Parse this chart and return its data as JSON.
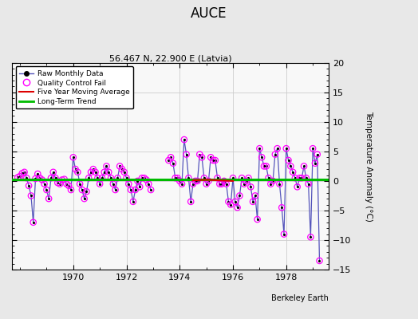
{
  "title": "AUCE",
  "subtitle": "56.467 N, 22.900 E (Latvia)",
  "ylabel": "Temperature Anomaly (°C)",
  "attribution": "Berkeley Earth",
  "ylim": [
    -15,
    20
  ],
  "yticks": [
    -15,
    -10,
    -5,
    0,
    5,
    10,
    15,
    20
  ],
  "xlim": [
    1967.7,
    1979.6
  ],
  "xticks": [
    1970,
    1972,
    1974,
    1976,
    1978
  ],
  "fig_bg": "#e8e8e8",
  "plot_bg": "#f8f8f8",
  "raw_color": "#5555bb",
  "qc_color": "#ff00ff",
  "trend_color": "#00bb00",
  "moving_avg_color": "#dd0000",
  "segment1": [
    [
      1967.917,
      0.6
    ],
    [
      1968.0,
      0.8
    ],
    [
      1968.083,
      1.3
    ],
    [
      1968.167,
      1.5
    ],
    [
      1968.25,
      0.5
    ],
    [
      1968.333,
      -0.8
    ],
    [
      1968.417,
      -2.5
    ],
    [
      1968.5,
      -7.0
    ],
    [
      1968.583,
      0.4
    ],
    [
      1968.667,
      1.2
    ],
    [
      1968.75,
      0.5
    ],
    [
      1968.833,
      0.2
    ],
    [
      1968.917,
      -0.5
    ],
    [
      1969.0,
      -1.5
    ],
    [
      1969.083,
      -3.0
    ],
    [
      1969.167,
      0.5
    ],
    [
      1969.25,
      1.5
    ],
    [
      1969.333,
      0.5
    ],
    [
      1969.417,
      -0.3
    ],
    [
      1969.5,
      -0.5
    ],
    [
      1969.583,
      0.2
    ],
    [
      1969.667,
      0.3
    ],
    [
      1969.75,
      -0.5
    ],
    [
      1969.833,
      -0.8
    ],
    [
      1969.917,
      -1.5
    ],
    [
      1970.0,
      4.0
    ],
    [
      1970.083,
      2.0
    ],
    [
      1970.167,
      1.5
    ],
    [
      1970.25,
      -0.5
    ],
    [
      1970.333,
      -1.5
    ],
    [
      1970.417,
      -3.0
    ],
    [
      1970.5,
      -1.8
    ],
    [
      1970.583,
      0.5
    ],
    [
      1970.667,
      1.5
    ],
    [
      1970.75,
      2.0
    ],
    [
      1970.833,
      1.5
    ],
    [
      1970.917,
      0.5
    ],
    [
      1971.0,
      -0.5
    ],
    [
      1971.083,
      0.5
    ],
    [
      1971.167,
      1.5
    ],
    [
      1971.25,
      2.5
    ],
    [
      1971.333,
      1.5
    ],
    [
      1971.417,
      0.5
    ],
    [
      1971.5,
      -0.5
    ],
    [
      1971.583,
      -1.5
    ],
    [
      1971.667,
      0.5
    ],
    [
      1971.75,
      2.5
    ],
    [
      1971.833,
      2.0
    ],
    [
      1971.917,
      1.5
    ],
    [
      1972.0,
      0.5
    ],
    [
      1972.083,
      -0.5
    ],
    [
      1972.167,
      -1.5
    ],
    [
      1972.25,
      -3.5
    ],
    [
      1972.333,
      -1.5
    ],
    [
      1972.417,
      0.0
    ],
    [
      1972.5,
      -1.0
    ],
    [
      1972.583,
      0.5
    ],
    [
      1972.667,
      0.5
    ],
    [
      1972.75,
      0.2
    ],
    [
      1972.833,
      -0.5
    ],
    [
      1972.917,
      -1.5
    ]
  ],
  "segment2": [
    [
      1973.583,
      3.5
    ],
    [
      1973.667,
      4.0
    ],
    [
      1973.75,
      3.0
    ],
    [
      1973.833,
      0.5
    ],
    [
      1973.917,
      0.5
    ],
    [
      1974.0,
      0.0
    ],
    [
      1974.083,
      -0.5
    ],
    [
      1974.167,
      7.0
    ],
    [
      1974.25,
      4.5
    ],
    [
      1974.333,
      0.5
    ],
    [
      1974.417,
      -3.5
    ],
    [
      1974.5,
      -0.5
    ],
    [
      1974.583,
      0.0
    ],
    [
      1974.667,
      0.0
    ],
    [
      1974.75,
      4.5
    ],
    [
      1974.833,
      4.0
    ],
    [
      1974.917,
      0.5
    ],
    [
      1975.0,
      -0.5
    ],
    [
      1975.083,
      0.0
    ],
    [
      1975.167,
      4.0
    ],
    [
      1975.25,
      3.5
    ],
    [
      1975.333,
      3.5
    ],
    [
      1975.417,
      0.5
    ],
    [
      1975.5,
      -0.5
    ],
    [
      1975.583,
      -0.5
    ],
    [
      1975.667,
      0.0
    ],
    [
      1975.75,
      -0.5
    ],
    [
      1975.833,
      -3.5
    ],
    [
      1975.917,
      -4.0
    ],
    [
      1976.0,
      0.5
    ],
    [
      1976.083,
      -3.5
    ],
    [
      1976.167,
      -4.5
    ],
    [
      1976.25,
      -2.5
    ],
    [
      1976.333,
      0.5
    ],
    [
      1976.417,
      -0.5
    ],
    [
      1976.5,
      0.0
    ],
    [
      1976.583,
      0.5
    ],
    [
      1976.667,
      -1.0
    ],
    [
      1976.75,
      -3.5
    ],
    [
      1976.833,
      -2.5
    ],
    [
      1976.917,
      -6.5
    ],
    [
      1977.0,
      5.5
    ],
    [
      1977.083,
      4.0
    ],
    [
      1977.167,
      2.5
    ],
    [
      1977.25,
      2.5
    ],
    [
      1977.333,
      0.5
    ],
    [
      1977.417,
      -0.5
    ],
    [
      1977.5,
      0.0
    ],
    [
      1977.583,
      4.5
    ],
    [
      1977.667,
      5.5
    ],
    [
      1977.75,
      -0.5
    ],
    [
      1977.833,
      -4.5
    ],
    [
      1977.917,
      -9.0
    ],
    [
      1978.0,
      5.5
    ],
    [
      1978.083,
      3.5
    ],
    [
      1978.167,
      2.5
    ],
    [
      1978.25,
      1.5
    ],
    [
      1978.333,
      0.5
    ],
    [
      1978.417,
      -1.0
    ],
    [
      1978.5,
      0.5
    ],
    [
      1978.583,
      0.5
    ],
    [
      1978.667,
      2.5
    ],
    [
      1978.75,
      0.5
    ],
    [
      1978.833,
      -0.5
    ],
    [
      1978.917,
      -9.5
    ],
    [
      1979.0,
      5.5
    ],
    [
      1979.083,
      3.0
    ],
    [
      1979.167,
      4.5
    ],
    [
      1979.25,
      -13.5
    ]
  ],
  "qc_points": [
    [
      1967.917,
      0.6
    ],
    [
      1968.0,
      0.8
    ],
    [
      1968.083,
      1.3
    ],
    [
      1968.167,
      1.5
    ],
    [
      1968.25,
      0.5
    ],
    [
      1968.333,
      -0.8
    ],
    [
      1968.417,
      -2.5
    ],
    [
      1968.5,
      -7.0
    ],
    [
      1968.583,
      0.4
    ],
    [
      1968.667,
      1.2
    ],
    [
      1968.75,
      0.5
    ],
    [
      1968.833,
      0.2
    ],
    [
      1968.917,
      -0.5
    ],
    [
      1969.0,
      -1.5
    ],
    [
      1969.083,
      -3.0
    ],
    [
      1969.167,
      0.5
    ],
    [
      1969.25,
      1.5
    ],
    [
      1969.333,
      0.5
    ],
    [
      1969.417,
      -0.3
    ],
    [
      1969.5,
      -0.5
    ],
    [
      1969.583,
      0.2
    ],
    [
      1969.667,
      0.3
    ],
    [
      1969.75,
      -0.5
    ],
    [
      1969.833,
      -0.8
    ],
    [
      1969.917,
      -1.5
    ],
    [
      1970.0,
      4.0
    ],
    [
      1970.083,
      2.0
    ],
    [
      1970.167,
      1.5
    ],
    [
      1970.25,
      -0.5
    ],
    [
      1970.333,
      -1.5
    ],
    [
      1970.417,
      -3.0
    ],
    [
      1970.5,
      -1.8
    ],
    [
      1970.583,
      0.5
    ],
    [
      1970.667,
      1.5
    ],
    [
      1970.75,
      2.0
    ],
    [
      1970.833,
      1.5
    ],
    [
      1970.917,
      0.5
    ],
    [
      1971.0,
      -0.5
    ],
    [
      1971.083,
      0.5
    ],
    [
      1971.167,
      1.5
    ],
    [
      1971.25,
      2.5
    ],
    [
      1971.333,
      1.5
    ],
    [
      1971.417,
      0.5
    ],
    [
      1971.5,
      -0.5
    ],
    [
      1971.583,
      -1.5
    ],
    [
      1971.667,
      0.5
    ],
    [
      1971.75,
      2.5
    ],
    [
      1971.833,
      2.0
    ],
    [
      1971.917,
      1.5
    ],
    [
      1972.0,
      0.5
    ],
    [
      1972.083,
      -0.5
    ],
    [
      1972.167,
      -1.5
    ],
    [
      1972.25,
      -3.5
    ],
    [
      1972.333,
      -1.5
    ],
    [
      1972.417,
      0.0
    ],
    [
      1972.5,
      -1.0
    ],
    [
      1972.583,
      0.5
    ],
    [
      1972.667,
      0.5
    ],
    [
      1972.75,
      0.2
    ],
    [
      1972.833,
      -0.5
    ],
    [
      1972.917,
      -1.5
    ],
    [
      1973.583,
      3.5
    ],
    [
      1973.667,
      4.0
    ],
    [
      1973.75,
      3.0
    ],
    [
      1973.833,
      0.5
    ],
    [
      1973.917,
      0.5
    ],
    [
      1974.0,
      0.0
    ],
    [
      1974.083,
      -0.5
    ],
    [
      1974.167,
      7.0
    ],
    [
      1974.25,
      4.5
    ],
    [
      1974.333,
      0.5
    ],
    [
      1974.417,
      -3.5
    ],
    [
      1974.5,
      -0.5
    ],
    [
      1974.583,
      0.0
    ],
    [
      1974.667,
      0.0
    ],
    [
      1974.75,
      4.5
    ],
    [
      1974.833,
      4.0
    ],
    [
      1974.917,
      0.5
    ],
    [
      1975.0,
      -0.5
    ],
    [
      1975.083,
      0.0
    ],
    [
      1975.167,
      4.0
    ],
    [
      1975.25,
      3.5
    ],
    [
      1975.333,
      3.5
    ],
    [
      1975.417,
      0.5
    ],
    [
      1975.5,
      -0.5
    ],
    [
      1975.583,
      -0.5
    ],
    [
      1975.667,
      0.0
    ],
    [
      1975.75,
      -0.5
    ],
    [
      1975.833,
      -3.5
    ],
    [
      1975.917,
      -4.0
    ],
    [
      1976.0,
      0.5
    ],
    [
      1976.083,
      -3.5
    ],
    [
      1976.167,
      -4.5
    ],
    [
      1976.25,
      -2.5
    ],
    [
      1976.333,
      0.5
    ],
    [
      1976.417,
      -0.5
    ],
    [
      1976.5,
      0.0
    ],
    [
      1976.583,
      0.5
    ],
    [
      1976.667,
      -1.0
    ],
    [
      1976.75,
      -3.5
    ],
    [
      1976.833,
      -2.5
    ],
    [
      1976.917,
      -6.5
    ],
    [
      1977.0,
      5.5
    ],
    [
      1977.083,
      4.0
    ],
    [
      1977.167,
      2.5
    ],
    [
      1977.25,
      2.5
    ],
    [
      1977.333,
      0.5
    ],
    [
      1977.417,
      -0.5
    ],
    [
      1977.5,
      0.0
    ],
    [
      1977.583,
      4.5
    ],
    [
      1977.667,
      5.5
    ],
    [
      1977.75,
      -0.5
    ],
    [
      1977.833,
      -4.5
    ],
    [
      1977.917,
      -9.0
    ],
    [
      1978.0,
      5.5
    ],
    [
      1978.083,
      3.5
    ],
    [
      1978.167,
      2.5
    ],
    [
      1978.25,
      1.5
    ],
    [
      1978.333,
      0.5
    ],
    [
      1978.417,
      -1.0
    ],
    [
      1978.5,
      0.5
    ],
    [
      1978.583,
      0.5
    ],
    [
      1978.667,
      2.5
    ],
    [
      1978.75,
      0.5
    ],
    [
      1978.833,
      -0.5
    ],
    [
      1978.917,
      -9.5
    ],
    [
      1979.0,
      5.5
    ],
    [
      1979.083,
      3.0
    ],
    [
      1979.167,
      4.5
    ],
    [
      1979.25,
      -13.5
    ]
  ],
  "moving_avg": [
    [
      1974.5,
      0.1
    ],
    [
      1975.0,
      0.2
    ],
    [
      1975.5,
      0.1
    ],
    [
      1976.0,
      0.0
    ]
  ]
}
